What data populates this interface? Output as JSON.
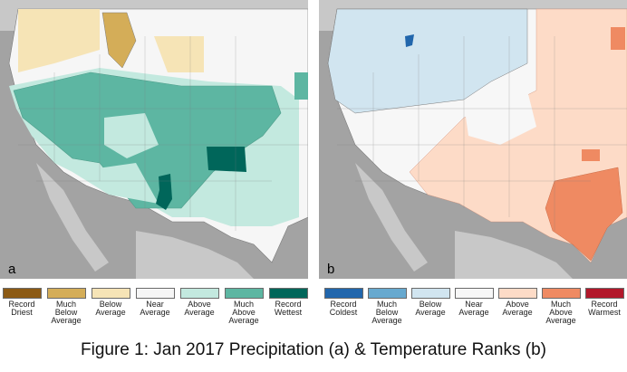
{
  "panels": [
    {
      "id": "a",
      "letter": "a",
      "legend": [
        {
          "label": "Record\nDriest",
          "color": "#8c5a14"
        },
        {
          "label": "Much\nBelow\nAverage",
          "color": "#d4ad58"
        },
        {
          "label": "Below\nAverage",
          "color": "#f6e4b6"
        },
        {
          "label": "Near\nAverage",
          "color": "#f6f6f6"
        },
        {
          "label": "Above\nAverage",
          "color": "#c3e9df"
        },
        {
          "label": "Much\nAbove\nAverage",
          "color": "#5db6a2"
        },
        {
          "label": "Record\nWettest",
          "color": "#00665a"
        }
      ]
    },
    {
      "id": "b",
      "letter": "b",
      "legend": [
        {
          "label": "Record\nColdest",
          "color": "#2166ac"
        },
        {
          "label": "Much\nBelow\nAverage",
          "color": "#67a9cf"
        },
        {
          "label": "Below\nAverage",
          "color": "#d1e5f0"
        },
        {
          "label": "Near\nAverage",
          "color": "#f7f7f7"
        },
        {
          "label": "Above\nAverage",
          "color": "#fddbc7"
        },
        {
          "label": "Much\nAbove\nAverage",
          "color": "#ef8a62"
        },
        {
          "label": "Record\nWarmest",
          "color": "#b2182b"
        }
      ]
    }
  ],
  "caption": "Figure 1: Jan 2017 Precipitation (a) & Temperature Ranks (b)",
  "colors": {
    "ocean": "#a3a3a3",
    "land_outside": "#c8c8c8",
    "border": "#7a7a7a"
  }
}
